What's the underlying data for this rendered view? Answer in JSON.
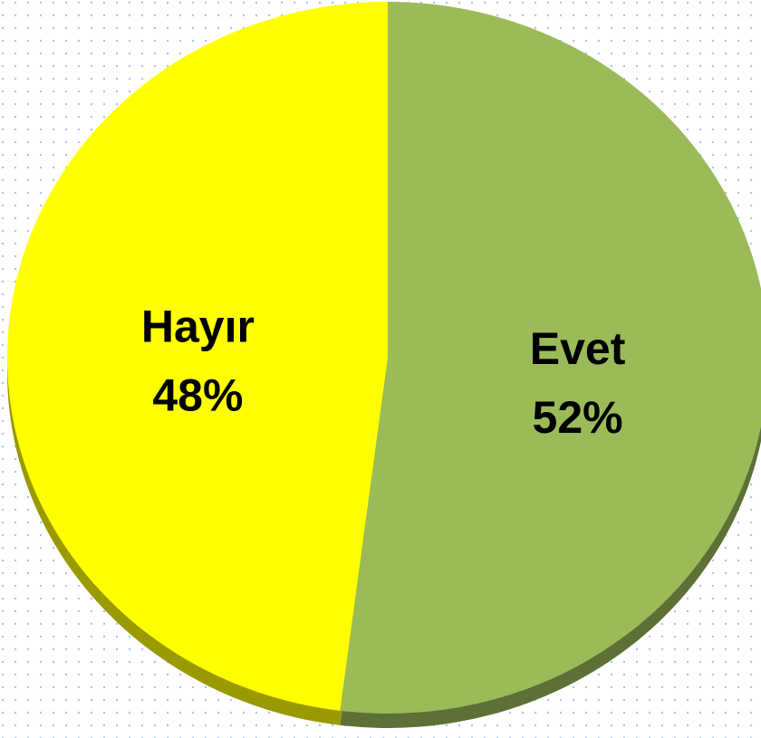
{
  "chart_data": {
    "type": "pie",
    "categories": [
      "Evet",
      "Hayır"
    ],
    "values": [
      52,
      48
    ],
    "value_labels": [
      "52%",
      "48%"
    ],
    "colors": [
      "#9bbb59",
      "#ffff00"
    ],
    "start_angle": 90,
    "direction": "clockwise"
  }
}
